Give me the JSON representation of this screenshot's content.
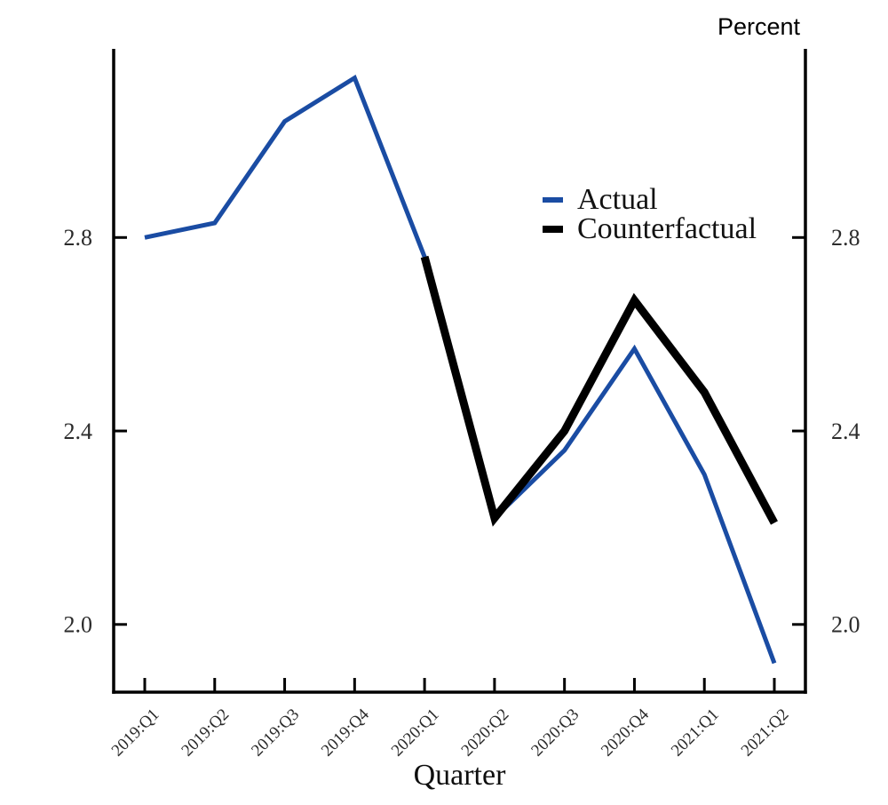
{
  "figure": {
    "unit_label": "Percent",
    "xlabel": "Quarter",
    "background": "#ffffff"
  },
  "chart_data": {
    "type": "line",
    "title": "",
    "xlabel": "Quarter",
    "ylabel": "Percent",
    "categories": [
      "2019:Q1",
      "2019:Q2",
      "2019:Q3",
      "2019:Q4",
      "2020:Q1",
      "2020:Q2",
      "2020:Q3",
      "2020:Q4",
      "2021:Q1",
      "2021:Q2"
    ],
    "series": [
      {
        "name": "Actual",
        "color": "#1a4ca3",
        "stroke_width": 5,
        "values": [
          2.8,
          2.83,
          3.04,
          3.13,
          2.76,
          2.22,
          2.36,
          2.57,
          2.31,
          1.92
        ]
      },
      {
        "name": "Counterfactual",
        "color": "#000000",
        "stroke_width": 9,
        "values": [
          null,
          null,
          null,
          null,
          2.76,
          2.22,
          2.4,
          2.67,
          2.48,
          2.21
        ]
      }
    ],
    "y_ticks": [
      2.0,
      2.4,
      2.8
    ],
    "y_tick_labels": [
      "2.0",
      "2.4",
      "2.8"
    ],
    "y_ticks_both_sides": true,
    "ylim": [
      1.86,
      3.19
    ],
    "grid": false,
    "legend_position": "inside-upper-right",
    "axis_color": "#000000",
    "tick_label_color": "#2b2b2b"
  }
}
